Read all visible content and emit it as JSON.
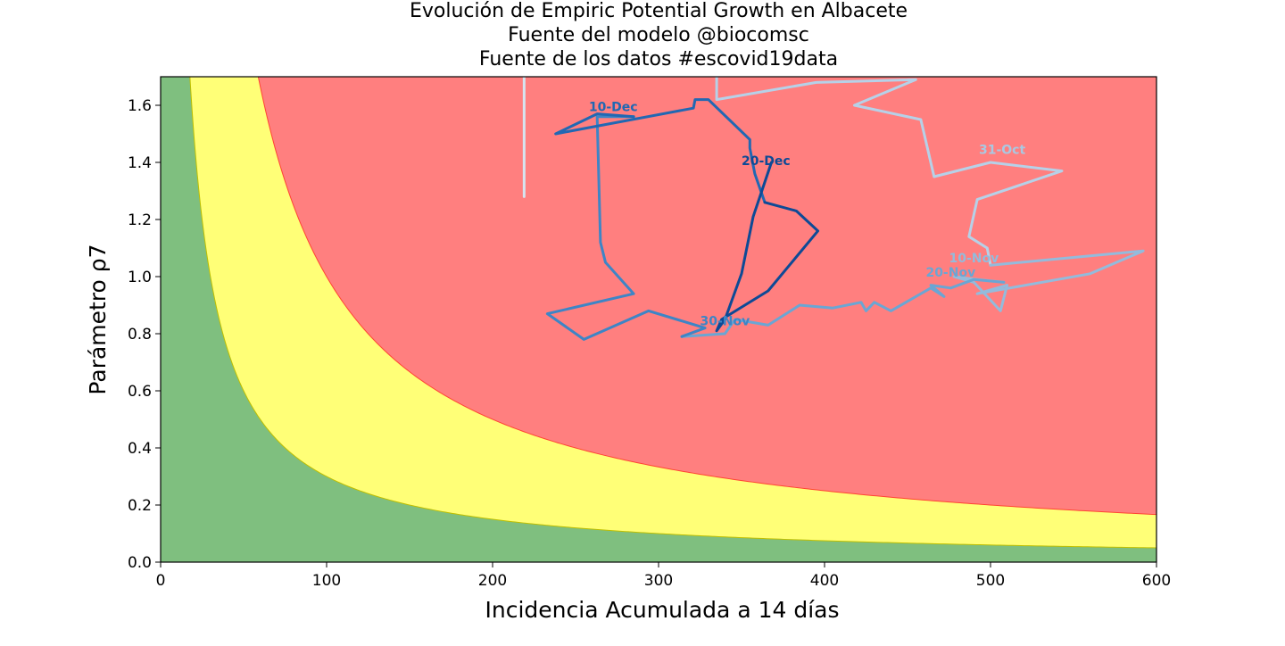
{
  "chart_data": {
    "type": "line",
    "title_lines": [
      "Evolución de Empiric Potential Growth en Albacete",
      "Fuente del modelo @biocomsc",
      "Fuente de los datos #escovid19data"
    ],
    "xlabel": "Incidencia Acumulada a 14 días",
    "ylabel": "Parámetro ρ7",
    "xlim": [
      0,
      600
    ],
    "ylim": [
      0,
      1.7
    ],
    "x_ticks": [
      0,
      100,
      200,
      300,
      400,
      500,
      600
    ],
    "y_ticks": [
      0.0,
      0.2,
      0.4,
      0.6,
      0.8,
      1.0,
      1.2,
      1.4,
      1.6
    ],
    "grid": false,
    "risk_zones": [
      {
        "name": "bajo",
        "color": "#7fbf7f",
        "edge_color": "#bfbf00",
        "threshold_product": 30
      },
      {
        "name": "medio",
        "color": "#ffff77",
        "edge_color": "#ff4433",
        "threshold_product": 100
      },
      {
        "name": "alto",
        "color": "#ff7f7f"
      }
    ],
    "trajectory": [
      {
        "color": "#d6e4f0",
        "points": [
          [
            219,
            1.28
          ],
          [
            219,
            1.74
          ]
        ]
      },
      {
        "color": "#b6d1e8",
        "points": [
          [
            335,
            1.74
          ],
          [
            335,
            1.62
          ],
          [
            395,
            1.68
          ],
          [
            455,
            1.69
          ],
          [
            418,
            1.6
          ],
          [
            458,
            1.55
          ],
          [
            466,
            1.35
          ],
          [
            500,
            1.4
          ],
          [
            543,
            1.37
          ],
          [
            492,
            1.27
          ],
          [
            487,
            1.14
          ],
          [
            498,
            1.1
          ],
          [
            500,
            1.04
          ]
        ]
      },
      {
        "color": "#93bbdc",
        "points": [
          [
            500,
            1.04
          ],
          [
            592,
            1.09
          ],
          [
            560,
            1.01
          ],
          [
            492,
            0.94
          ],
          [
            510,
            0.97
          ],
          [
            506,
            0.88
          ],
          [
            490,
            0.98
          ],
          [
            478,
            1.0
          ],
          [
            492,
            0.99
          ],
          [
            508,
            0.98
          ]
        ]
      },
      {
        "color": "#6aa6d4",
        "points": [
          [
            508,
            0.98
          ],
          [
            490,
            0.99
          ],
          [
            476,
            0.96
          ],
          [
            464,
            0.97
          ],
          [
            472,
            0.93
          ],
          [
            464,
            0.96
          ],
          [
            440,
            0.88
          ],
          [
            430,
            0.91
          ],
          [
            425,
            0.88
          ],
          [
            422,
            0.91
          ],
          [
            405,
            0.89
          ],
          [
            385,
            0.9
          ],
          [
            366,
            0.83
          ],
          [
            346,
            0.85
          ],
          [
            340,
            0.8
          ],
          [
            314,
            0.79
          ]
        ]
      },
      {
        "color": "#3d85c6",
        "points": [
          [
            314,
            0.79
          ],
          [
            328,
            0.82
          ],
          [
            294,
            0.88
          ],
          [
            255,
            0.78
          ],
          [
            233,
            0.87
          ],
          [
            285,
            0.94
          ],
          [
            268,
            1.05
          ],
          [
            265,
            1.12
          ],
          [
            263,
            1.56
          ],
          [
            285,
            1.56
          ]
        ]
      },
      {
        "color": "#2168b3",
        "points": [
          [
            285,
            1.56
          ],
          [
            263,
            1.57
          ],
          [
            238,
            1.5
          ],
          [
            321,
            1.59
          ],
          [
            322,
            1.62
          ],
          [
            330,
            1.62
          ],
          [
            355,
            1.48
          ],
          [
            355,
            1.45
          ],
          [
            358,
            1.36
          ],
          [
            364,
            1.26
          ]
        ]
      },
      {
        "color": "#0d4a96",
        "points": [
          [
            364,
            1.26
          ],
          [
            383,
            1.23
          ],
          [
            396,
            1.16
          ],
          [
            366,
            0.95
          ],
          [
            338,
            0.85
          ],
          [
            335,
            0.81
          ],
          [
            340,
            0.85
          ],
          [
            350,
            1.01
          ],
          [
            357,
            1.21
          ],
          [
            368,
            1.4
          ]
        ]
      }
    ],
    "annotations": [
      {
        "text": "31-Oct",
        "x": 493,
        "y": 1.43,
        "color": "#a9c8e2"
      },
      {
        "text": "10-Nov",
        "x": 475,
        "y": 1.05,
        "color": "#93bbdc"
      },
      {
        "text": "20-Nov",
        "x": 461,
        "y": 1.0,
        "color": "#6aa6d4"
      },
      {
        "text": "30-Nov",
        "x": 325,
        "y": 0.83,
        "color": "#3d85c6"
      },
      {
        "text": "10-Dec",
        "x": 258,
        "y": 1.58,
        "color": "#2168b3"
      },
      {
        "text": "20-Dec",
        "x": 350,
        "y": 1.39,
        "color": "#0d4a96"
      }
    ]
  }
}
